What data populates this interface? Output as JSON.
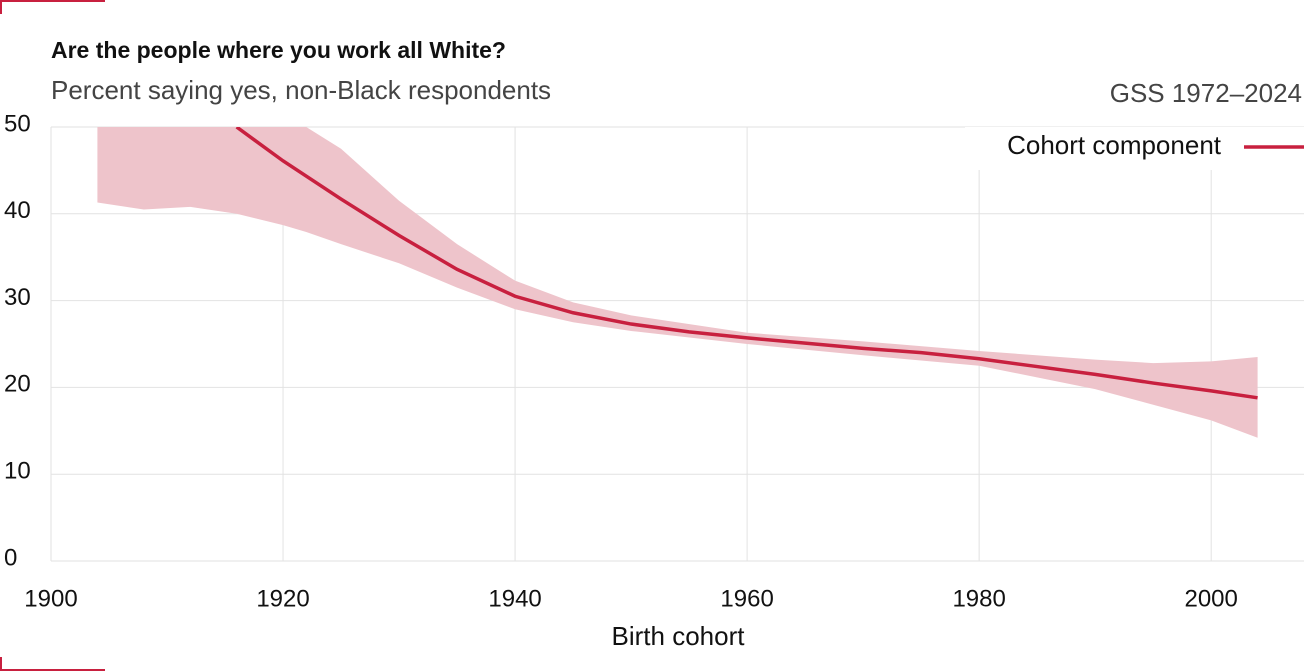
{
  "chart_data": {
    "type": "line",
    "title": "Are the people where you work all White?",
    "subtitle": "Percent saying yes, non-Black respondents",
    "source": "GSS 1972–2024",
    "x_label": "Birth cohort",
    "x": [
      1916,
      1920,
      1925,
      1930,
      1935,
      1940,
      1945,
      1950,
      1955,
      1960,
      1965,
      1970,
      1975,
      1980,
      1985,
      1990,
      1995,
      2000,
      2004
    ],
    "series": [
      {
        "name": "Cohort component",
        "color": "#c8203f",
        "values": [
          50,
          46.1,
          41.7,
          37.5,
          33.6,
          30.5,
          28.6,
          27.3,
          26.4,
          25.7,
          25.1,
          24.5,
          24.0,
          23.3,
          22.4,
          21.5,
          20.5,
          19.6,
          18.8
        ]
      }
    ],
    "band": {
      "color": "#eec4cb",
      "x": [
        1904,
        1908,
        1912,
        1916,
        1920,
        1922,
        1925,
        1930,
        1935,
        1940,
        1945,
        1950,
        1960,
        1970,
        1980,
        1990,
        1995,
        2000,
        2004
      ],
      "lower": [
        41.3,
        40.5,
        40.8,
        40.0,
        38.7,
        37.9,
        36.5,
        34.3,
        31.5,
        29.0,
        27.5,
        26.5,
        25.0,
        23.7,
        22.5,
        19.8,
        18.0,
        16.2,
        14.2
      ],
      "upper": [
        50,
        50,
        50,
        50,
        50,
        50,
        47.5,
        41.5,
        36.5,
        32.3,
        29.8,
        28.3,
        26.3,
        25.3,
        24.2,
        23.2,
        22.8,
        23.0,
        23.5
      ]
    },
    "xlim": [
      1900,
      2008
    ],
    "ylim": [
      0,
      50
    ],
    "xticks": [
      1900,
      1920,
      1940,
      1960,
      1980,
      2000
    ],
    "yticks": [
      0,
      10,
      20,
      30,
      40,
      50
    ],
    "grid": true,
    "legend": "top-right"
  }
}
